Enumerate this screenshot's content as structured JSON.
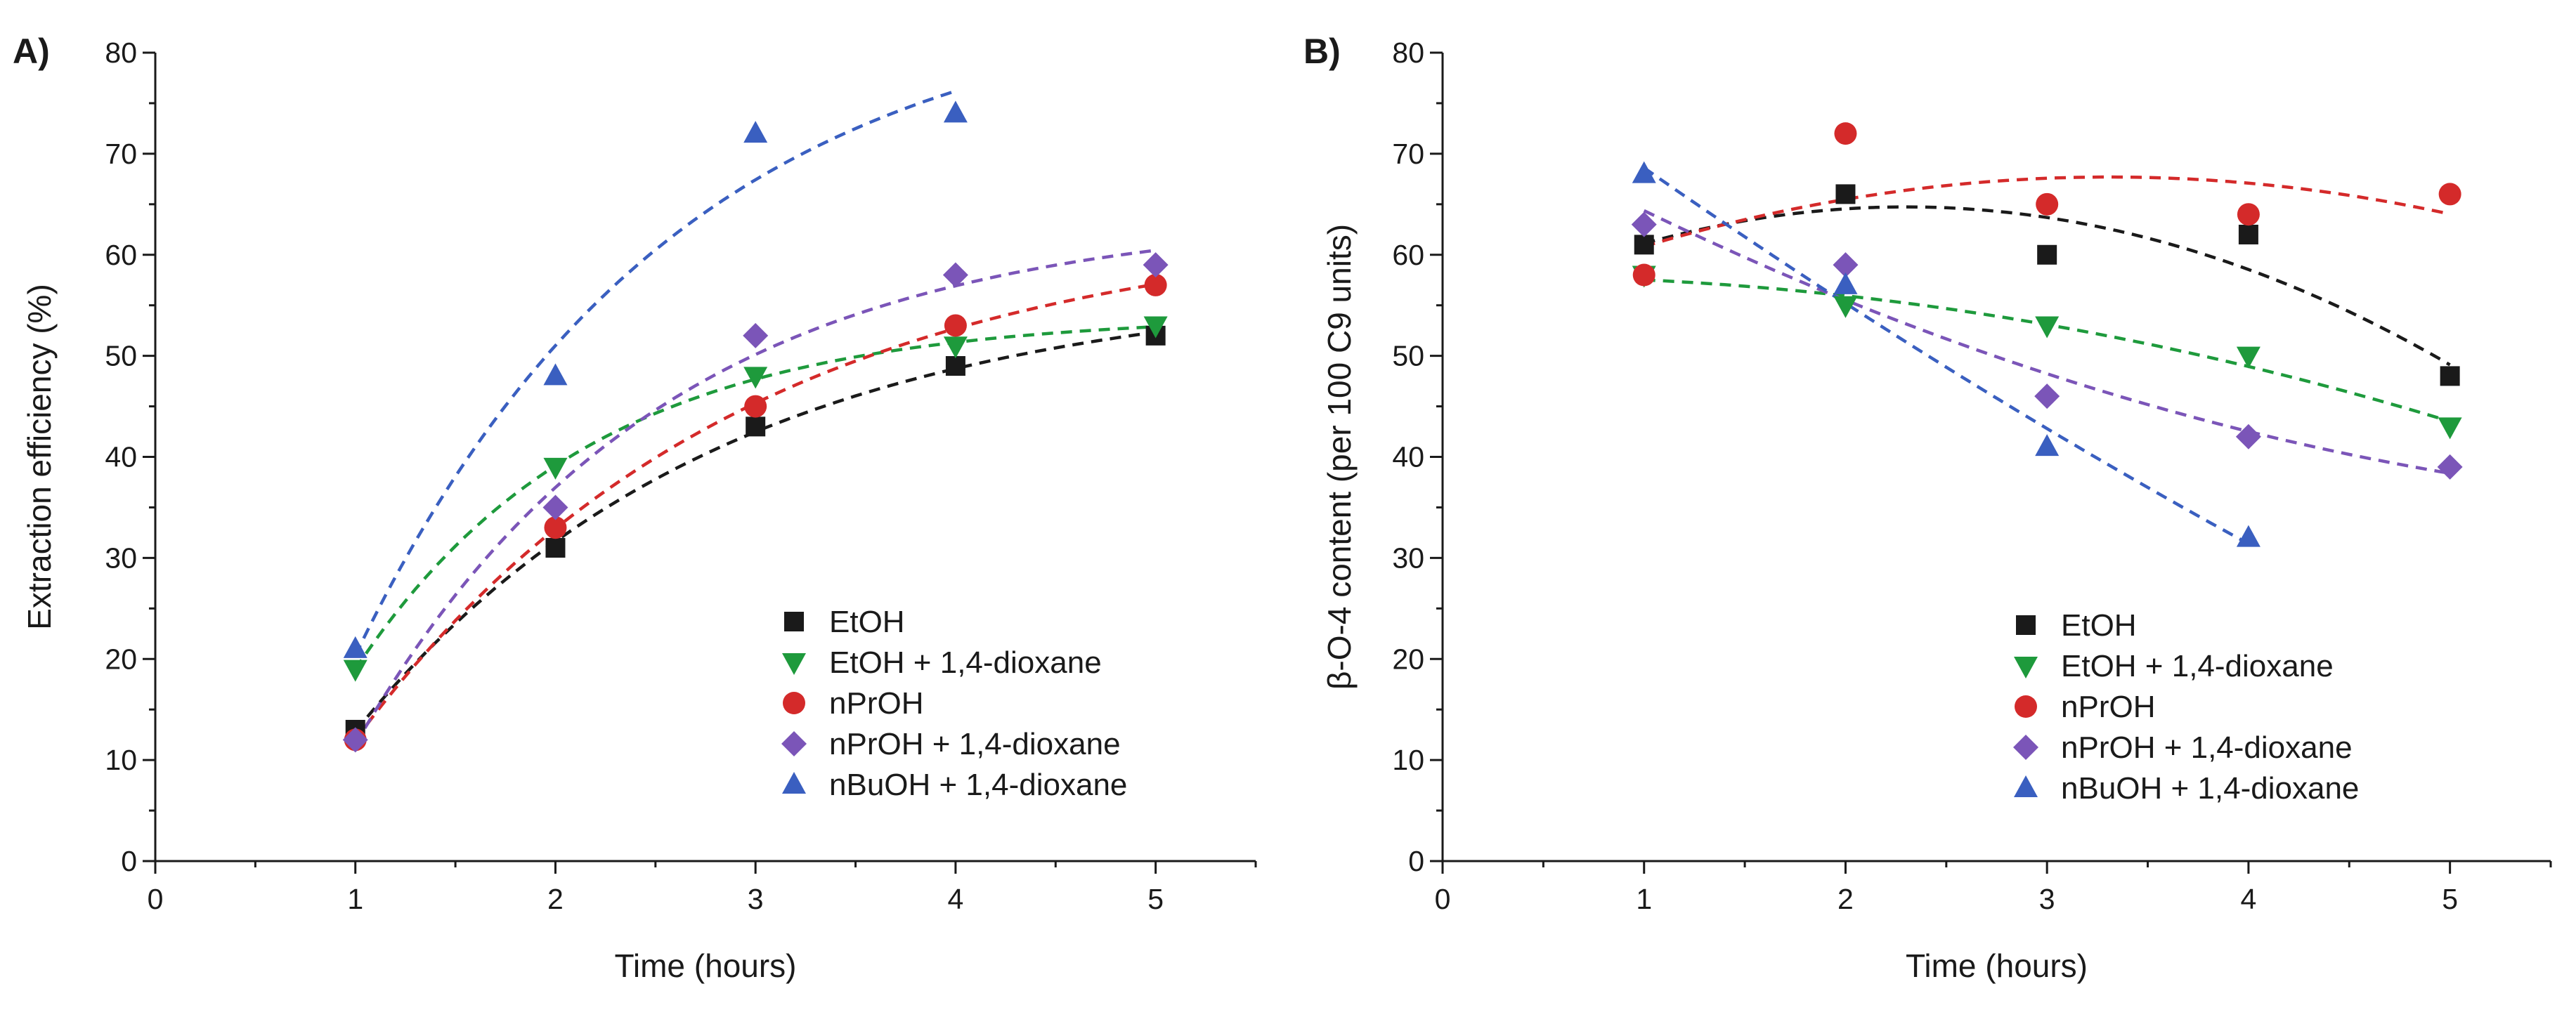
{
  "chart_data": [
    {
      "id": "A",
      "panel_label": "A)",
      "type": "scatter",
      "xlabel": "Time (hours)",
      "ylabel": "Extraction efficiency (%)",
      "xlim": [
        0,
        5.5
      ],
      "ylim": [
        0,
        80
      ],
      "xticks": [
        0,
        1,
        2,
        3,
        4,
        5
      ],
      "yticks": [
        0,
        10,
        20,
        30,
        40,
        50,
        60,
        70,
        80
      ],
      "legend_position": "bottom-right",
      "fit": "saturation",
      "series": [
        {
          "name": "EtOH",
          "marker": "square",
          "color": "#1a1a1a",
          "x": [
            1,
            2,
            3,
            4,
            5
          ],
          "y": [
            13,
            31,
            43,
            49,
            52
          ]
        },
        {
          "name": "EtOH + 1,4-dioxane",
          "marker": "triangle-down",
          "color": "#1e9a3c",
          "x": [
            1,
            2,
            3,
            4,
            5
          ],
          "y": [
            19,
            39,
            48,
            51,
            53
          ]
        },
        {
          "name": "nPrOH",
          "marker": "circle",
          "color": "#d42a2a",
          "x": [
            1,
            2,
            3,
            4,
            5
          ],
          "y": [
            12,
            33,
            45,
            53,
            57
          ]
        },
        {
          "name": "nPrOH + 1,4-dioxane",
          "marker": "diamond",
          "color": "#7b55b8",
          "x": [
            1,
            2,
            3,
            4,
            5
          ],
          "y": [
            12,
            35,
            52,
            58,
            59
          ]
        },
        {
          "name": "nBuOH + 1,4-dioxane",
          "marker": "triangle-up",
          "color": "#3a5fc0",
          "x": [
            1,
            2,
            3,
            4
          ],
          "y": [
            21,
            48,
            72,
            74
          ]
        }
      ]
    },
    {
      "id": "B",
      "panel_label": "B)",
      "type": "scatter",
      "xlabel": "Time (hours)",
      "ylabel": "β-O-4 content (per 100 C9 units)",
      "xlim": [
        0,
        5.5
      ],
      "ylim": [
        0,
        80
      ],
      "xticks": [
        0,
        1,
        2,
        3,
        4,
        5
      ],
      "yticks": [
        0,
        10,
        20,
        30,
        40,
        50,
        60,
        70,
        80
      ],
      "legend_position": "bottom-right",
      "fit": "quadratic",
      "series": [
        {
          "name": "EtOH",
          "marker": "square",
          "color": "#1a1a1a",
          "x": [
            1,
            2,
            3,
            4,
            5
          ],
          "y": [
            61,
            66,
            60,
            62,
            48
          ]
        },
        {
          "name": "EtOH + 1,4-dioxane",
          "marker": "triangle-down",
          "color": "#1e9a3c",
          "x": [
            1,
            2,
            3,
            4,
            5
          ],
          "y": [
            58,
            55,
            53,
            50,
            43
          ]
        },
        {
          "name": "nPrOH",
          "marker": "circle",
          "color": "#d42a2a",
          "x": [
            1,
            2,
            3,
            4,
            5
          ],
          "y": [
            58,
            72,
            65,
            64,
            66
          ]
        },
        {
          "name": "nPrOH + 1,4-dioxane",
          "marker": "diamond",
          "color": "#7b55b8",
          "x": [
            1,
            2,
            3,
            4,
            5
          ],
          "y": [
            63,
            59,
            46,
            42,
            39
          ]
        },
        {
          "name": "nBuOH + 1,4-dioxane",
          "marker": "triangle-up",
          "color": "#3a5fc0",
          "x": [
            1,
            2,
            3,
            4
          ],
          "y": [
            68,
            57,
            41,
            32
          ]
        }
      ]
    }
  ]
}
